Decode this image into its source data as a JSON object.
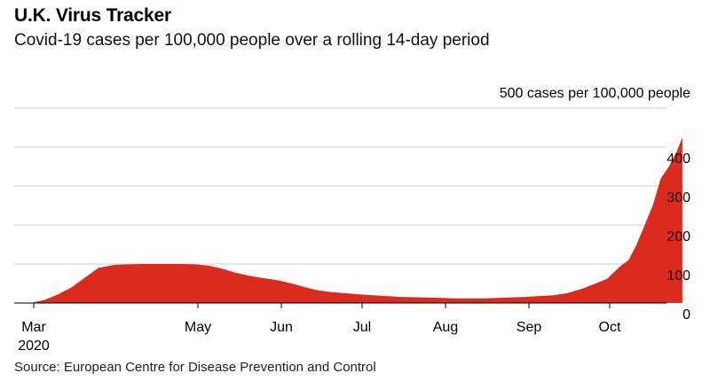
{
  "header": {
    "title": "U.K. Virus Tracker",
    "subtitle": "Covid-19 cases per 100,000 people over a rolling 14-day period"
  },
  "footer": {
    "source": "Source: European Centre for Disease Prevention and Control"
  },
  "colors": {
    "area": "#dd2a1f",
    "grid": "#cfcfcf"
  },
  "chart_data": {
    "type": "area",
    "title": "U.K. Virus Tracker",
    "subtitle": "Covid-19 cases per 100,000 people over a rolling 14-day period",
    "ylabel": "500 cases per 100,000 people",
    "ylim": [
      0,
      500
    ],
    "xlim": [
      "2020-03-01",
      "2020-11-01"
    ],
    "yticks": [
      0,
      100,
      200,
      300,
      400
    ],
    "ytick_labels": [
      "0",
      "100",
      "200",
      "300",
      "400"
    ],
    "xticks": [
      {
        "date": "2020-03-01",
        "label": "Mar",
        "sub": "2020"
      },
      {
        "date": "2020-05-01",
        "label": "May"
      },
      {
        "date": "2020-06-01",
        "label": "Jun"
      },
      {
        "date": "2020-07-01",
        "label": "Jul"
      },
      {
        "date": "2020-08-01",
        "label": "Aug"
      },
      {
        "date": "2020-09-01",
        "label": "Sep"
      },
      {
        "date": "2020-10-01",
        "label": "Oct"
      }
    ],
    "grid": true,
    "series": [
      {
        "x": [
          "2020-03-01",
          "2020-03-05",
          "2020-03-10",
          "2020-03-15",
          "2020-03-20",
          "2020-03-25",
          "2020-03-31",
          "2020-04-05",
          "2020-04-10",
          "2020-04-15",
          "2020-04-20",
          "2020-04-25",
          "2020-04-30",
          "2020-05-05",
          "2020-05-10",
          "2020-05-15",
          "2020-05-20",
          "2020-05-25",
          "2020-05-31",
          "2020-06-05",
          "2020-06-10",
          "2020-06-15",
          "2020-06-20",
          "2020-06-25",
          "2020-06-30",
          "2020-07-05",
          "2020-07-10",
          "2020-07-15",
          "2020-07-20",
          "2020-07-25",
          "2020-07-31",
          "2020-08-05",
          "2020-08-10",
          "2020-08-15",
          "2020-08-20",
          "2020-08-25",
          "2020-08-31",
          "2020-09-05",
          "2020-09-10",
          "2020-09-15",
          "2020-09-20",
          "2020-09-25",
          "2020-09-30",
          "2020-10-02",
          "2020-10-05",
          "2020-10-08",
          "2020-10-11",
          "2020-10-14",
          "2020-10-17",
          "2020-10-20",
          "2020-10-23",
          "2020-10-26",
          "2020-10-28"
        ],
        "y": [
          2,
          8,
          22,
          40,
          65,
          90,
          98,
          99,
          100,
          100,
          100,
          100,
          99,
          96,
          88,
          78,
          70,
          64,
          58,
          50,
          40,
          32,
          28,
          25,
          22,
          20,
          18,
          16,
          15,
          14,
          13,
          12,
          12,
          12,
          13,
          14,
          16,
          18,
          20,
          25,
          35,
          48,
          62,
          75,
          95,
          110,
          150,
          200,
          250,
          320,
          350,
          390,
          425
        ]
      }
    ]
  }
}
